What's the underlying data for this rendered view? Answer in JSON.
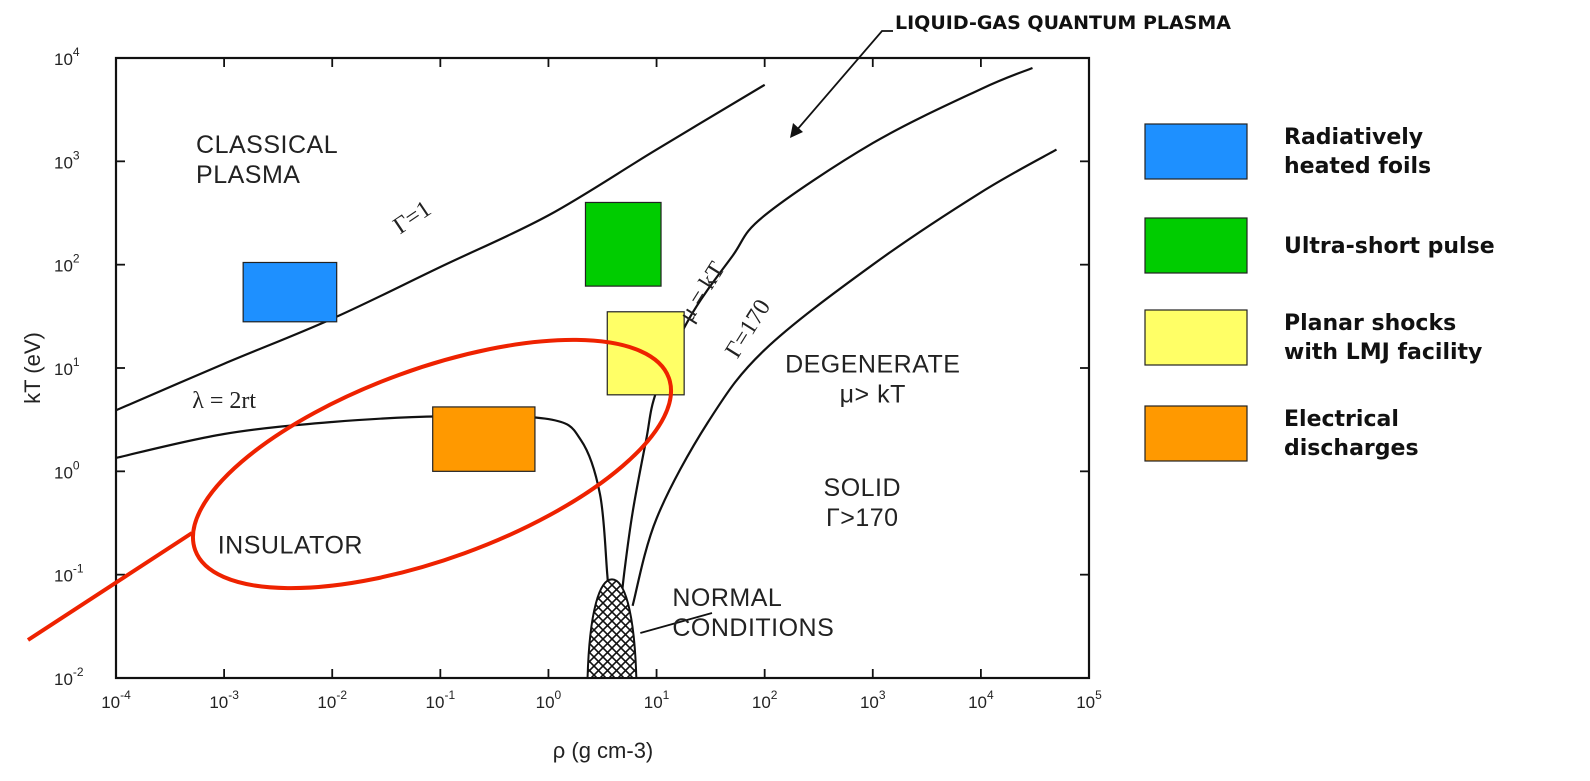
{
  "chart_data": {
    "type": "diagram",
    "xlabel": "ρ (g cm-3)",
    "ylabel": "kT (eV)",
    "x_scale": "log",
    "y_scale": "log",
    "xlim": [
      0.0001,
      100000
    ],
    "ylim": [
      0.01,
      10000
    ],
    "x_ticks": [
      {
        "base": "10",
        "exp": "-4",
        "value": 0.0001
      },
      {
        "base": "10",
        "exp": "-3",
        "value": 0.001
      },
      {
        "base": "10",
        "exp": "-2",
        "value": 0.01
      },
      {
        "base": "10",
        "exp": "-1",
        "value": 0.1
      },
      {
        "base": "10",
        "exp": "0",
        "value": 1
      },
      {
        "base": "10",
        "exp": "1",
        "value": 10
      },
      {
        "base": "10",
        "exp": "2",
        "value": 100
      },
      {
        "base": "10",
        "exp": "3",
        "value": 1000
      },
      {
        "base": "10",
        "exp": "4",
        "value": 10000
      },
      {
        "base": "10",
        "exp": "5",
        "value": 100000
      }
    ],
    "y_ticks": [
      {
        "base": "10",
        "exp": "-2",
        "value": 0.01
      },
      {
        "base": "10",
        "exp": "-1",
        "value": 0.1
      },
      {
        "base": "10",
        "exp": "0",
        "value": 1
      },
      {
        "base": "10",
        "exp": "1",
        "value": 10
      },
      {
        "base": "10",
        "exp": "2",
        "value": 100
      },
      {
        "base": "10",
        "exp": "3",
        "value": 1000
      },
      {
        "base": "10",
        "exp": "4",
        "value": 10000
      }
    ],
    "curves": [
      {
        "id": "gamma1",
        "label": "Γ=1",
        "points": [
          [
            0.0001,
            3.9
          ],
          [
            0.001,
            11
          ],
          [
            0.01,
            30
          ],
          [
            0.1,
            95
          ],
          [
            1,
            300
          ],
          [
            10,
            1300
          ],
          [
            100,
            5500
          ]
        ]
      },
      {
        "id": "lambda",
        "label": "λ = 2rt",
        "points": [
          [
            0.0001,
            1.35
          ],
          [
            0.001,
            2.3
          ],
          [
            0.01,
            3.0
          ],
          [
            0.1,
            3.4
          ],
          [
            1,
            3.2
          ],
          [
            2,
            2.0
          ],
          [
            3,
            0.6
          ],
          [
            3.5,
            0.1
          ],
          [
            3.8,
            0.03
          ]
        ]
      },
      {
        "id": "mu_kT",
        "label": "μ = kT",
        "points": [
          [
            4.5,
            0.035
          ],
          [
            5,
            0.1
          ],
          [
            6,
            0.4
          ],
          [
            8,
            2
          ],
          [
            10,
            6
          ],
          [
            20,
            30
          ],
          [
            50,
            120
          ],
          [
            100,
            300
          ],
          [
            1000,
            1500
          ],
          [
            10000,
            5000
          ],
          [
            30000,
            8000
          ]
        ]
      },
      {
        "id": "gamma170",
        "label": "Γ=170",
        "points": [
          [
            6,
            0.05
          ],
          [
            10,
            0.35
          ],
          [
            30,
            3
          ],
          [
            100,
            15
          ],
          [
            1000,
            100
          ],
          [
            10000,
            500
          ],
          [
            50000,
            1300
          ]
        ]
      }
    ],
    "regions": [
      {
        "lines": [
          "CLASSICAL",
          "PLASMA"
        ]
      },
      {
        "lines": [
          "DEGENERATE",
          "μ> kT"
        ]
      },
      {
        "lines": [
          "SOLID",
          "Γ>170"
        ]
      },
      {
        "lines": [
          "INSULATOR"
        ]
      },
      {
        "lines": [
          "NORMAL",
          "CONDITIONS"
        ]
      }
    ],
    "boxes": [
      {
        "series": "Radiatively heated foils",
        "x": [
          0.0015,
          0.011
        ],
        "y": [
          28,
          105
        ],
        "color": "#1e90ff"
      },
      {
        "series": "Ultra-short pulse",
        "x": [
          2.2,
          11
        ],
        "y": [
          62,
          400
        ],
        "color": "#00cc00"
      },
      {
        "series": "Planar shocks with LMJ facility",
        "x": [
          3.5,
          18
        ],
        "y": [
          5.5,
          35
        ],
        "color": "#ffff66"
      },
      {
        "series": "Electrical discharges",
        "x": [
          0.085,
          0.75
        ],
        "y": [
          1.0,
          4.2
        ],
        "color": "#ff9900"
      }
    ],
    "normal_conditions_region": {
      "x": [
        2.3,
        6.5
      ],
      "y": [
        0.01,
        0.09
      ]
    },
    "annotation": "LIQUID-GAS QUANTUM PLASMA",
    "highlight_color": "#ee2200",
    "legend_position": "right",
    "legend": [
      {
        "lines": [
          "Radiatively",
          "heated foils"
        ],
        "color": "#1e90ff"
      },
      {
        "lines": [
          "Ultra-short pulse"
        ],
        "color": "#00cc00"
      },
      {
        "lines": [
          "Planar shocks",
          "with LMJ facility"
        ],
        "color": "#ffff66"
      },
      {
        "lines": [
          "Electrical",
          "discharges"
        ],
        "color": "#ff9900"
      }
    ]
  }
}
